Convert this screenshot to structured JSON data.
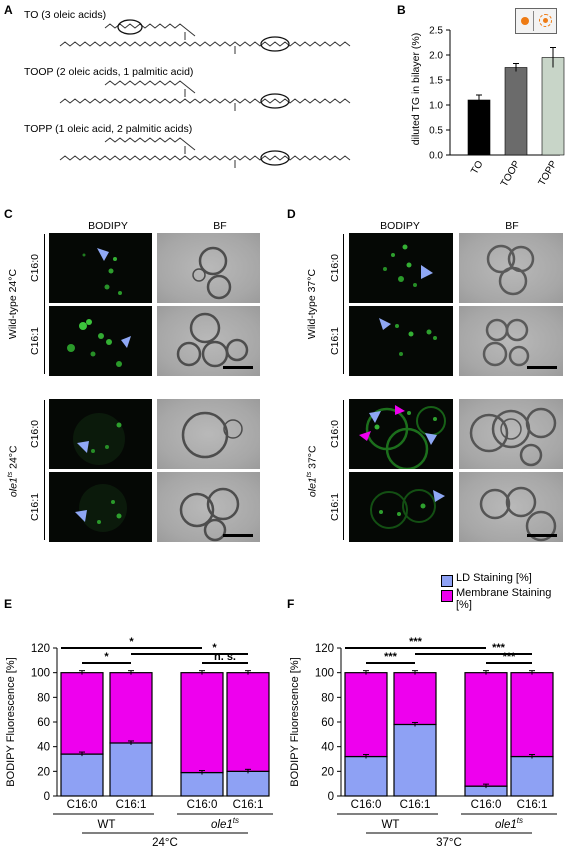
{
  "panels": {
    "A": "A",
    "B": "B",
    "C": "C",
    "D": "D",
    "E": "E",
    "F": "F"
  },
  "panelA": {
    "to_label": "TO (3 oleic acids)",
    "toop_label": "TOOP (2 oleic acids, 1 palmitic acid)",
    "topp_label": "TOPP (1 oleic acid, 2 palmitic acids)"
  },
  "panelB": {
    "chart_data": {
      "type": "bar",
      "categories": [
        "TO",
        "TOOP",
        "TOPP"
      ],
      "values": [
        1.1,
        1.75,
        1.95
      ],
      "errors": [
        0.1,
        0.08,
        0.2
      ],
      "colors": [
        "#000000",
        "#6b6b6b",
        "#c8d5c8"
      ],
      "ylabel": "diluted TG in bilayer (%)",
      "ylim": [
        0,
        2.5
      ],
      "yticks": [
        "0.0",
        "0.5",
        "1.0",
        "1.5",
        "2.0",
        "2.5"
      ]
    }
  },
  "panelC": {
    "col1": "BODIPY",
    "col2": "BF",
    "group1": "Wild-type 24°C",
    "group2_base": "ole1",
    "group2_sup": "ts",
    "group2_temp": " 24°C",
    "row1": "C16:0",
    "row2": "C16:1"
  },
  "panelD": {
    "col1": "BODIPY",
    "col2": "BF",
    "group1": "Wild-type 37°C",
    "group2_base": "ole1",
    "group2_sup": "ts",
    "group2_temp": " 37°C",
    "row1": "C16:0",
    "row2": "C16:1"
  },
  "legend": {
    "ld": "LD Staining [%]",
    "membrane": "Membrane Staining [%]",
    "ld_color": "#8ea1f4",
    "membrane_color": "#ee00ee"
  },
  "panelE": {
    "chart_data": {
      "type": "bar",
      "stacked": true,
      "categories": [
        "C16:0",
        "C16:1",
        "C16:0",
        "C16:1"
      ],
      "series": [
        {
          "name": "LD Staining [%]",
          "values": [
            34,
            43,
            19,
            20
          ]
        },
        {
          "name": "Membrane Staining [%]",
          "values": [
            66,
            57,
            81,
            80
          ]
        }
      ],
      "ylabel": "BODIPY Fluorescence [%]",
      "ylim": [
        0,
        120
      ],
      "yticks": [
        "0",
        "20",
        "40",
        "60",
        "80",
        "100",
        "120"
      ],
      "groups": [
        "WT",
        "ole1"
      ],
      "groups_sup": [
        "",
        "ts"
      ],
      "temperature": "24°C",
      "significance": [
        "*",
        "*",
        "*",
        "n. s."
      ]
    }
  },
  "panelF": {
    "chart_data": {
      "type": "bar",
      "stacked": true,
      "categories": [
        "C16:0",
        "C16:1",
        "C16:0",
        "C16:1"
      ],
      "series": [
        {
          "name": "LD Staining [%]",
          "values": [
            32,
            58,
            8,
            32
          ]
        },
        {
          "name": "Membrane Staining [%]",
          "values": [
            68,
            42,
            92,
            68
          ]
        }
      ],
      "ylabel": "BODIPY Fluorescence [%]",
      "ylim": [
        0,
        120
      ],
      "yticks": [
        "0",
        "20",
        "40",
        "60",
        "80",
        "100",
        "120"
      ],
      "groups": [
        "WT",
        "ole1"
      ],
      "groups_sup": [
        "",
        "ts"
      ],
      "temperature": "37°C",
      "significance": [
        "***",
        "***",
        "***",
        "***"
      ]
    }
  }
}
